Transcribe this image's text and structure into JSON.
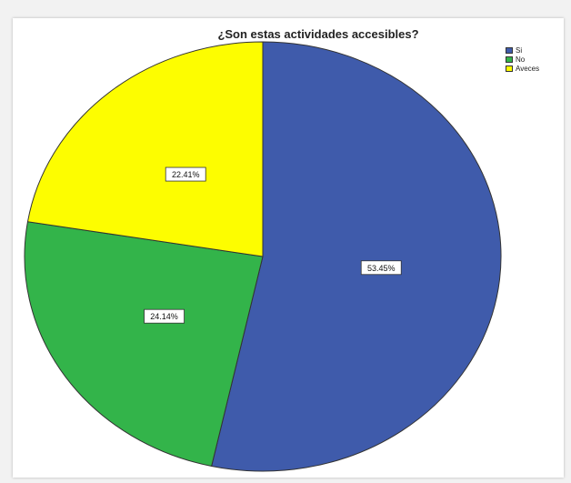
{
  "chart_data": {
    "type": "pie",
    "title": "¿Son estas actividades accesibles?",
    "legend_position": "top-right",
    "slices": [
      {
        "label": "Si",
        "value": 53.45,
        "display": "53.45%",
        "color": "#3f5bab"
      },
      {
        "label": "No",
        "value": 24.14,
        "display": "24.14%",
        "color": "#33b44a"
      },
      {
        "label": "Aveces",
        "value": 22.41,
        "display": "22.41%",
        "color": "#fdfd00"
      }
    ]
  }
}
